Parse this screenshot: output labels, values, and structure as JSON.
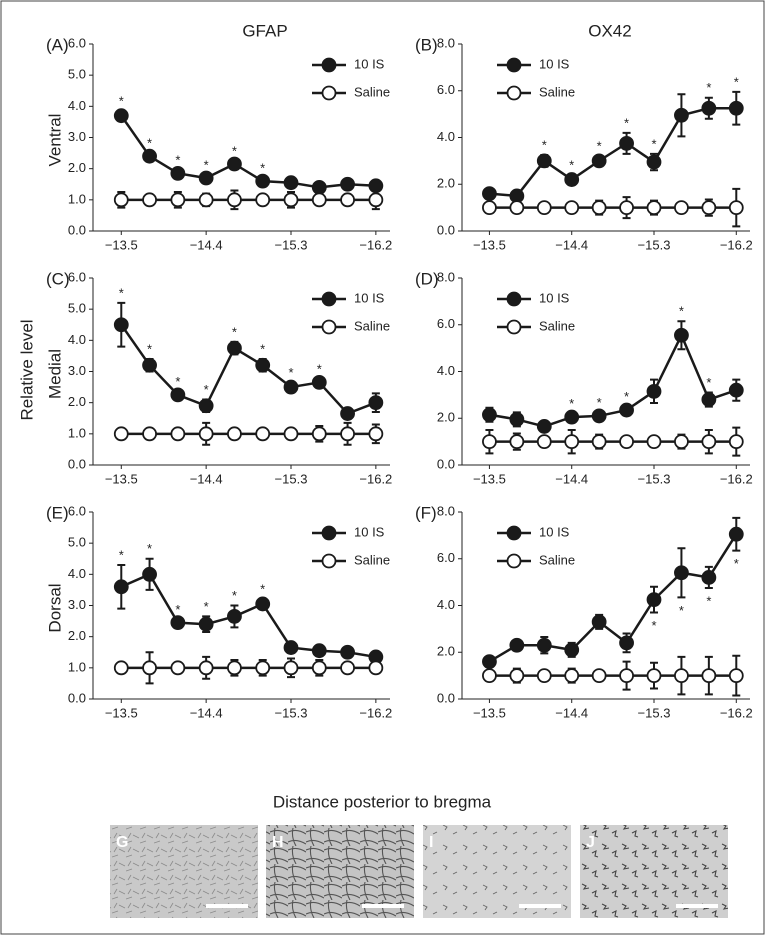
{
  "column_titles": [
    "GFAP",
    "OX42"
  ],
  "row_labels": [
    "Ventral",
    "Medial",
    "Dorsal"
  ],
  "ylabel": "Relative level",
  "xlabel": "Distance posterior to bregma",
  "images": [
    {
      "label": "G"
    },
    {
      "label": "H"
    },
    {
      "label": "I"
    },
    {
      "label": "J"
    }
  ],
  "chart_data": [
    {
      "type": "line",
      "panel": "(A)",
      "legend": "upper right",
      "annotation_side": "above",
      "x": [
        -13.5,
        -13.8,
        -14.1,
        -14.4,
        -14.7,
        -15.0,
        -15.3,
        -15.6,
        -15.9,
        -16.2
      ],
      "xlim": [
        -13.2,
        -16.35
      ],
      "xticks": [
        {
          "value": -13.5,
          "label": "−13.5"
        },
        {
          "value": -14.4,
          "label": "−14.4"
        },
        {
          "value": -15.3,
          "label": "−15.3"
        },
        {
          "value": -16.2,
          "label": "−16.2"
        }
      ],
      "ylim": [
        0,
        6
      ],
      "yticks": [
        {
          "value": 0,
          "label": "0.0"
        },
        {
          "value": 1,
          "label": "1.0"
        },
        {
          "value": 2,
          "label": "2.0"
        },
        {
          "value": 3,
          "label": "3.0"
        },
        {
          "value": 4,
          "label": "4.0"
        },
        {
          "value": 5,
          "label": "5.0"
        },
        {
          "value": 6,
          "label": "6.0"
        }
      ],
      "series": [
        {
          "name": "10 IS",
          "color": "#1a1a1a",
          "values": [
            3.7,
            2.4,
            1.85,
            1.7,
            2.15,
            1.6,
            1.55,
            1.4,
            1.5,
            1.45
          ],
          "errors": [
            0.15,
            0.1,
            0.1,
            0.1,
            0.1,
            0.1,
            0.15,
            0.1,
            0.1,
            0.1
          ],
          "annotations": [
            "*",
            "*",
            "*",
            "*",
            "*",
            "*",
            null,
            null,
            null,
            null
          ]
        },
        {
          "name": "Saline",
          "color": "#ffffff",
          "values": [
            1,
            1,
            1,
            1,
            1,
            1,
            1,
            1,
            1,
            1
          ],
          "errors": [
            0.25,
            0.1,
            0.25,
            0.2,
            0.3,
            0.1,
            0.25,
            0.1,
            0.1,
            0.3
          ]
        }
      ]
    },
    {
      "type": "line",
      "panel": "(B)",
      "legend": "upper left",
      "annotation_side": "above",
      "x": [
        -13.5,
        -13.8,
        -14.1,
        -14.4,
        -14.7,
        -15.0,
        -15.3,
        -15.6,
        -15.9,
        -16.2
      ],
      "xlim": [
        -13.2,
        -16.35
      ],
      "xticks": [
        {
          "value": -13.5,
          "label": "−13.5"
        },
        {
          "value": -14.4,
          "label": "−14.4"
        },
        {
          "value": -15.3,
          "label": "−15.3"
        },
        {
          "value": -16.2,
          "label": "−16.2"
        }
      ],
      "ylim": [
        0,
        8
      ],
      "yticks": [
        {
          "value": 0,
          "label": "0.0"
        },
        {
          "value": 2,
          "label": "2.0"
        },
        {
          "value": 4,
          "label": "4.0"
        },
        {
          "value": 6,
          "label": "6.0"
        },
        {
          "value": 8,
          "label": "8.0"
        }
      ],
      "series": [
        {
          "name": "10 IS",
          "color": "#1a1a1a",
          "values": [
            1.6,
            1.5,
            3.0,
            2.2,
            3.0,
            3.75,
            2.95,
            4.95,
            5.25,
            5.25
          ],
          "errors": [
            0.1,
            0.1,
            0.25,
            0.2,
            0.2,
            0.45,
            0.35,
            0.9,
            0.45,
            0.7
          ],
          "annotations": [
            null,
            null,
            "*",
            "*",
            "*",
            "*",
            "*",
            null,
            "*",
            "*"
          ]
        },
        {
          "name": "Saline",
          "color": "#ffffff",
          "values": [
            1,
            1,
            1,
            1,
            1,
            1,
            1,
            1,
            1,
            1
          ],
          "errors": [
            0.2,
            0.1,
            0.1,
            0.1,
            0.3,
            0.45,
            0.3,
            0.2,
            0.35,
            0.8
          ]
        }
      ]
    },
    {
      "type": "line",
      "panel": "(C)",
      "legend": "upper right",
      "annotation_side": "above",
      "x": [
        -13.5,
        -13.8,
        -14.1,
        -14.4,
        -14.7,
        -15.0,
        -15.3,
        -15.6,
        -15.9,
        -16.2
      ],
      "xlim": [
        -13.2,
        -16.35
      ],
      "xticks": [
        {
          "value": -13.5,
          "label": "−13.5"
        },
        {
          "value": -14.4,
          "label": "−14.4"
        },
        {
          "value": -15.3,
          "label": "−15.3"
        },
        {
          "value": -16.2,
          "label": "−16.2"
        }
      ],
      "ylim": [
        0,
        6
      ],
      "yticks": [
        {
          "value": 0,
          "label": "0.0"
        },
        {
          "value": 1,
          "label": "1.0"
        },
        {
          "value": 2,
          "label": "2.0"
        },
        {
          "value": 3,
          "label": "3.0"
        },
        {
          "value": 4,
          "label": "4.0"
        },
        {
          "value": 5,
          "label": "5.0"
        },
        {
          "value": 6,
          "label": "6.0"
        }
      ],
      "series": [
        {
          "name": "10 IS",
          "color": "#1a1a1a",
          "values": [
            4.5,
            3.2,
            2.25,
            1.9,
            3.75,
            3.2,
            2.5,
            2.65,
            1.65,
            2.0
          ],
          "errors": [
            0.7,
            0.2,
            0.1,
            0.2,
            0.2,
            0.2,
            0.15,
            0.1,
            0.1,
            0.3
          ],
          "annotations": [
            "*",
            "*",
            "*",
            "*",
            "*",
            "*",
            "*",
            "*",
            null,
            null
          ]
        },
        {
          "name": "Saline",
          "color": "#ffffff",
          "values": [
            1,
            1,
            1,
            1,
            1,
            1,
            1,
            1,
            1,
            1
          ],
          "errors": [
            0.15,
            0.1,
            0.1,
            0.35,
            0.1,
            0.15,
            0.1,
            0.25,
            0.35,
            0.3
          ]
        }
      ]
    },
    {
      "type": "line",
      "panel": "(D)",
      "legend": "upper left",
      "annotation_side": "above",
      "x": [
        -13.5,
        -13.8,
        -14.1,
        -14.4,
        -14.7,
        -15.0,
        -15.3,
        -15.6,
        -15.9,
        -16.2
      ],
      "xlim": [
        -13.2,
        -16.35
      ],
      "xticks": [
        {
          "value": -13.5,
          "label": "−13.5"
        },
        {
          "value": -14.4,
          "label": "−14.4"
        },
        {
          "value": -15.3,
          "label": "−15.3"
        },
        {
          "value": -16.2,
          "label": "−16.2"
        }
      ],
      "ylim": [
        0,
        8
      ],
      "yticks": [
        {
          "value": 0,
          "label": "0.0"
        },
        {
          "value": 2,
          "label": "2.0"
        },
        {
          "value": 4,
          "label": "4.0"
        },
        {
          "value": 6,
          "label": "6.0"
        },
        {
          "value": 8,
          "label": "8.0"
        }
      ],
      "series": [
        {
          "name": "10 IS",
          "color": "#1a1a1a",
          "values": [
            2.15,
            1.95,
            1.65,
            2.05,
            2.1,
            2.35,
            3.15,
            5.55,
            2.8,
            3.2
          ],
          "errors": [
            0.3,
            0.3,
            0.15,
            0.15,
            0.15,
            0.15,
            0.5,
            0.6,
            0.3,
            0.45
          ],
          "annotations": [
            null,
            null,
            null,
            "*",
            "*",
            "*",
            null,
            "*",
            "*",
            null
          ]
        },
        {
          "name": "Saline",
          "color": "#ffffff",
          "values": [
            1,
            1,
            1,
            1,
            1,
            1,
            1,
            1,
            1,
            1
          ],
          "errors": [
            0.5,
            0.35,
            0.2,
            0.5,
            0.3,
            0.2,
            0.2,
            0.3,
            0.5,
            0.6
          ]
        }
      ]
    },
    {
      "type": "line",
      "panel": "(E)",
      "legend": "upper right",
      "annotation_side": "above",
      "x": [
        -13.5,
        -13.8,
        -14.1,
        -14.4,
        -14.7,
        -15.0,
        -15.3,
        -15.6,
        -15.9,
        -16.2
      ],
      "xlim": [
        -13.2,
        -16.35
      ],
      "xticks": [
        {
          "value": -13.5,
          "label": "−13.5"
        },
        {
          "value": -14.4,
          "label": "−14.4"
        },
        {
          "value": -15.3,
          "label": "−15.3"
        },
        {
          "value": -16.2,
          "label": "−16.2"
        }
      ],
      "ylim": [
        0,
        6
      ],
      "yticks": [
        {
          "value": 0,
          "label": "0.0"
        },
        {
          "value": 1,
          "label": "1.0"
        },
        {
          "value": 2,
          "label": "2.0"
        },
        {
          "value": 3,
          "label": "3.0"
        },
        {
          "value": 4,
          "label": "4.0"
        },
        {
          "value": 5,
          "label": "5.0"
        },
        {
          "value": 6,
          "label": "6.0"
        }
      ],
      "series": [
        {
          "name": "10 IS",
          "color": "#1a1a1a",
          "values": [
            3.6,
            4.0,
            2.45,
            2.4,
            2.65,
            3.05,
            1.65,
            1.55,
            1.5,
            1.35
          ],
          "errors": [
            0.7,
            0.5,
            0.1,
            0.25,
            0.35,
            0.15,
            0.1,
            0.1,
            0.1,
            0.1
          ],
          "annotations": [
            "*",
            "*",
            "*",
            "*",
            "*",
            "*",
            null,
            null,
            null,
            null
          ]
        },
        {
          "name": "Saline",
          "color": "#ffffff",
          "values": [
            1,
            1,
            1,
            1,
            1,
            1,
            1,
            1,
            1,
            1
          ],
          "errors": [
            0.1,
            0.5,
            0.1,
            0.35,
            0.25,
            0.25,
            0.3,
            0.25,
            0.1,
            0.1
          ]
        }
      ]
    },
    {
      "type": "line",
      "panel": "(F)",
      "legend": "upper left",
      "annotation_side": "below",
      "x": [
        -13.5,
        -13.8,
        -14.1,
        -14.4,
        -14.7,
        -15.0,
        -15.3,
        -15.6,
        -15.9,
        -16.2
      ],
      "xlim": [
        -13.2,
        -16.35
      ],
      "xticks": [
        {
          "value": -13.5,
          "label": "−13.5"
        },
        {
          "value": -14.4,
          "label": "−14.4"
        },
        {
          "value": -15.3,
          "label": "−15.3"
        },
        {
          "value": -16.2,
          "label": "−16.2"
        }
      ],
      "ylim": [
        0,
        8
      ],
      "yticks": [
        {
          "value": 0,
          "label": "0.0"
        },
        {
          "value": 2,
          "label": "2.0"
        },
        {
          "value": 4,
          "label": "4.0"
        },
        {
          "value": 6,
          "label": "6.0"
        },
        {
          "value": 8,
          "label": "8.0"
        }
      ],
      "series": [
        {
          "name": "10 IS",
          "color": "#1a1a1a",
          "values": [
            1.6,
            2.3,
            2.3,
            2.1,
            3.3,
            2.4,
            4.25,
            5.4,
            5.2,
            7.05
          ],
          "errors": [
            0.1,
            0.1,
            0.35,
            0.3,
            0.3,
            0.4,
            0.55,
            1.05,
            0.45,
            0.7
          ],
          "annotations": [
            null,
            null,
            null,
            null,
            null,
            null,
            "*",
            "*",
            "*",
            "*"
          ]
        },
        {
          "name": "Saline",
          "color": "#ffffff",
          "values": [
            1,
            1,
            1,
            1,
            1,
            1,
            1,
            1,
            1,
            1
          ],
          "errors": [
            0.2,
            0.3,
            0.2,
            0.3,
            0.2,
            0.6,
            0.55,
            0.8,
            0.8,
            0.85
          ]
        }
      ]
    }
  ]
}
